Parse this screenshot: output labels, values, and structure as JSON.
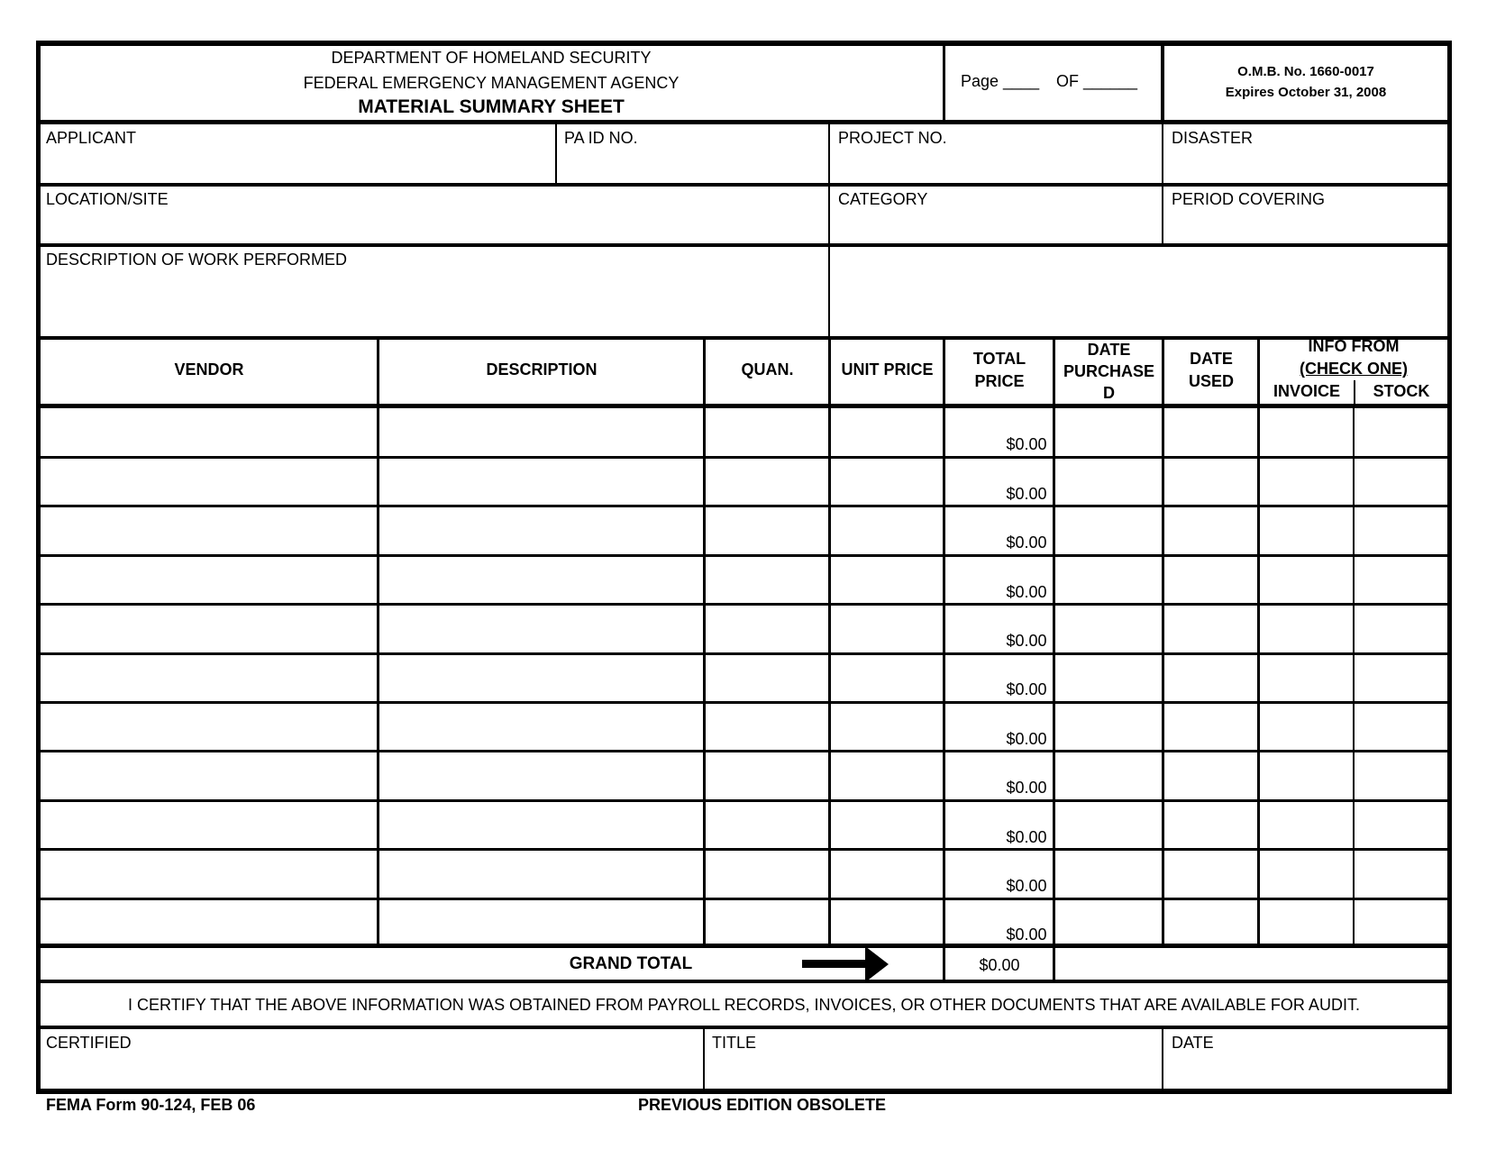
{
  "header": {
    "dept": "DEPARTMENT OF HOMELAND SECURITY",
    "agency": "FEDERAL EMERGENCY MANAGEMENT AGENCY",
    "title": "MATERIAL SUMMARY SHEET",
    "page_label": "Page ____",
    "of_label": "OF ______",
    "omb": "O.M.B. No. 1660-0017",
    "expires": "Expires October 31, 2008"
  },
  "fields": {
    "applicant": "APPLICANT",
    "pa_id": "PA ID NO.",
    "project_no": "PROJECT NO.",
    "disaster": "DISASTER",
    "location": "LOCATION/SITE",
    "category": "CATEGORY",
    "period": "PERIOD COVERING",
    "description_work": "DESCRIPTION OF WORK PERFORMED"
  },
  "table": {
    "headers": {
      "vendor": "VENDOR",
      "description": "DESCRIPTION",
      "quan": "QUAN.",
      "unit_price": "UNIT PRICE",
      "total_price_1": "TOTAL",
      "total_price_2": "PRICE",
      "date_purchased_1": "DATE",
      "date_purchased_2": "PURCHASE",
      "date_purchased_3": "D",
      "date_used_1": "DATE",
      "date_used_2": "USED",
      "info_from": "INFO FROM",
      "check_one": "(CHECK ONE)",
      "invoice": "INVOICE",
      "stock": "STOCK"
    },
    "rows": [
      "$0.00",
      "$0.00",
      "$0.00",
      "$0.00",
      "$0.00",
      "$0.00",
      "$0.00",
      "$0.00",
      "$0.00",
      "$0.00",
      "$0.00"
    ],
    "grand_total_label": "GRAND TOTAL",
    "grand_total_value": "$0.00"
  },
  "certify_text": "I CERTIFY THAT THE ABOVE INFORMATION WAS OBTAINED FROM PAYROLL RECORDS, INVOICES, OR OTHER DOCUMENTS THAT ARE AVAILABLE FOR AUDIT.",
  "signature": {
    "certified": "CERTIFIED",
    "title": "TITLE",
    "date": "DATE"
  },
  "footer": {
    "form_id": "FEMA Form 90-124, FEB 06",
    "obsolete": "PREVIOUS EDITION OBSOLETE"
  }
}
